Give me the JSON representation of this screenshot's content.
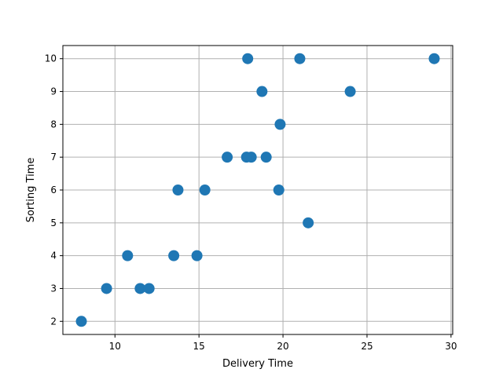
{
  "chart_data": {
    "type": "scatter",
    "title": "",
    "xlabel": "Delivery Time",
    "ylabel": "Sorting Time",
    "xlim": [
      6.9,
      30.1
    ],
    "ylim": [
      1.6,
      10.4
    ],
    "x_ticks": [
      10,
      15,
      20,
      25,
      30
    ],
    "y_ticks": [
      2,
      3,
      4,
      5,
      6,
      7,
      8,
      9,
      10
    ],
    "x_tick_labels": [
      "10",
      "15",
      "20",
      "25",
      "30"
    ],
    "y_tick_labels": [
      "2",
      "3",
      "4",
      "5",
      "6",
      "7",
      "8",
      "9",
      "10"
    ],
    "grid": true,
    "legend": "none",
    "marker_color": "#1f77b4",
    "series": [
      {
        "x": [
          21.0,
          13.5,
          19.75,
          24.0,
          29.0,
          15.35,
          19.0,
          9.5,
          17.9,
          18.75,
          19.83,
          10.75,
          16.68,
          11.5,
          12.03,
          14.88,
          13.75,
          18.11,
          8.0,
          17.83,
          21.5
        ],
        "y": [
          10,
          4,
          6,
          9,
          10,
          6,
          7,
          3,
          10,
          9,
          8,
          4,
          7,
          3,
          3,
          4,
          6,
          7,
          2,
          7,
          5
        ]
      }
    ]
  }
}
